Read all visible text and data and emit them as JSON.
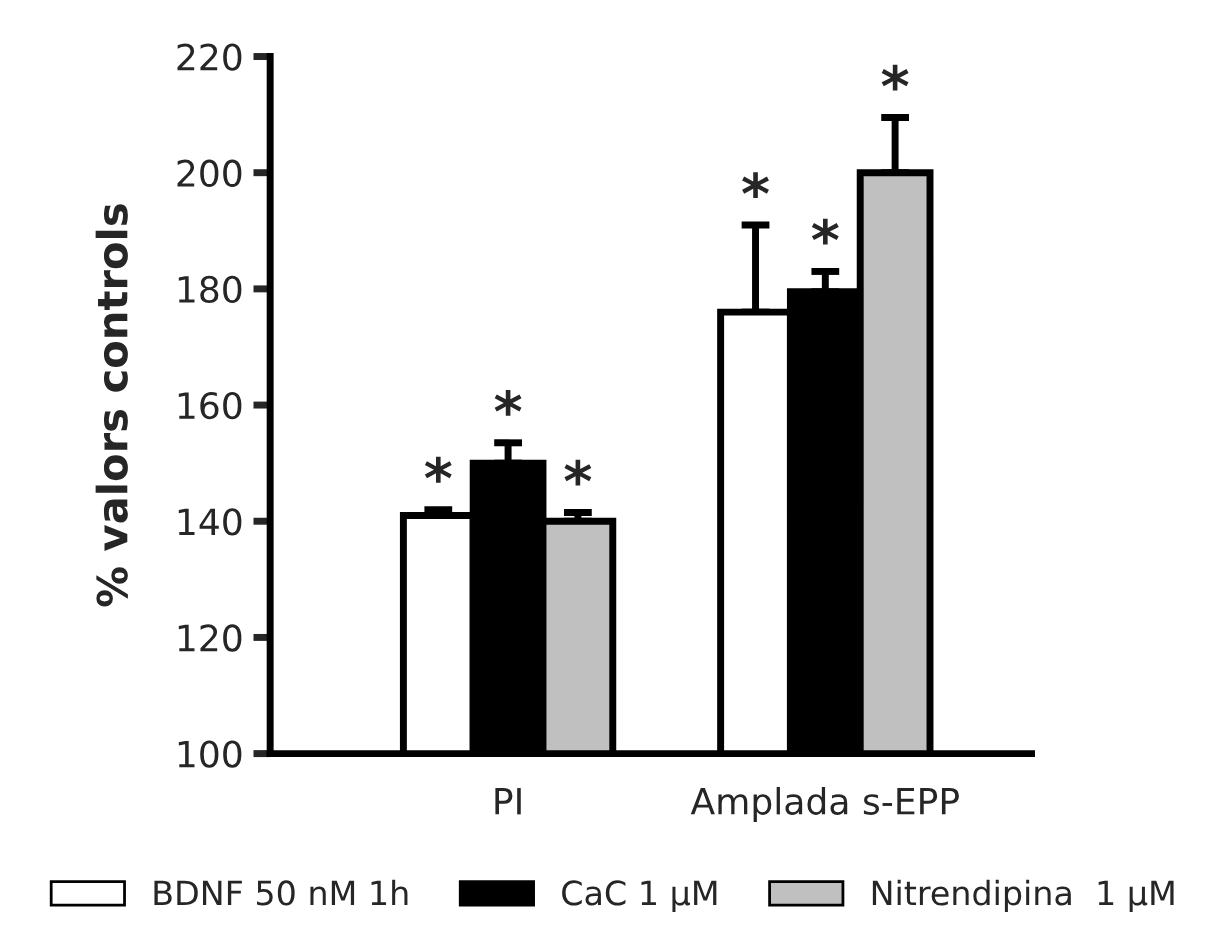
{
  "chart_data": {
    "type": "bar",
    "ylabel": "% valors controls",
    "categories": [
      "PI",
      "Amplada s-EPP"
    ],
    "series": [
      {
        "name": "BDNF 50 nM 1h",
        "color": "#ffffff",
        "values": [
          141,
          176
        ],
        "errors": [
          [
            141,
            142
          ],
          [
            176,
            191
          ]
        ]
      },
      {
        "name": "CaC 1 µM",
        "color": "#000000",
        "values": [
          150,
          179.5
        ],
        "errors": [
          [
            150,
            153.5
          ],
          [
            179.5,
            183
          ]
        ]
      },
      {
        "name": "Nitrendipina  1 µM",
        "color": "#c0c0c0",
        "values": [
          140,
          200
        ],
        "errors": [
          [
            140,
            141.5
          ],
          [
            200,
            209.5
          ]
        ]
      }
    ],
    "annotations": [
      {
        "text": "*",
        "y": 142
      },
      {
        "text": "*",
        "y": 153.5
      },
      {
        "text": "*",
        "y": 141.5
      },
      {
        "text": "*",
        "y": 191
      },
      {
        "text": "*",
        "y": 183
      },
      {
        "text": "*",
        "y": 209.5
      }
    ],
    "ylim": [
      100,
      220
    ],
    "yticks": [
      100,
      120,
      140,
      160,
      180,
      200,
      220
    ],
    "grid": false,
    "legend": "bottom"
  }
}
